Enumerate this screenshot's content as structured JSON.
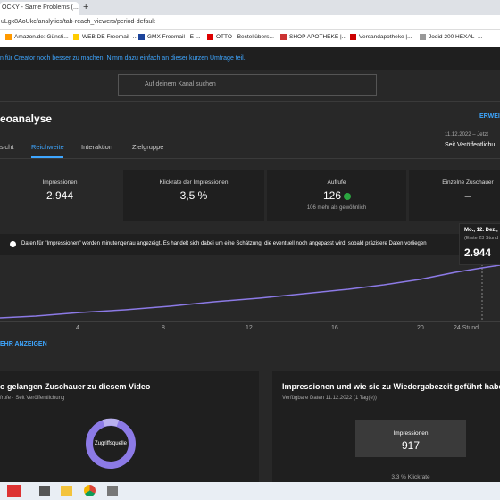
{
  "browser": {
    "tab_title": "OCKY - Same Problems (...",
    "new_tab": "+",
    "address": "uLgk8AoUkc/analytics/tab-reach_viewers/period-default",
    "bookmarks": [
      "Amazon.de: Günsti...",
      "WEB.DE Freemail -...",
      "GMX Freemail - E-...",
      "OTTO - Bestellübers...",
      "SHOP APOTHEKE |...",
      "Versandapotheke |...",
      "Jodid 200 HEXAL -..."
    ]
  },
  "banner": "n für Creator noch besser zu machen. Nimm dazu einfach an dieser kurzen Umfrage teil.",
  "search_placeholder": "Auf deinem Kanal suchen",
  "header": {
    "title": "eoanalyse",
    "action": "ERWEI",
    "period_range": "11.12.2022 – Jetzt",
    "period": "Seit Veröffentlichu"
  },
  "tabs": [
    "sicht",
    "Reichweite",
    "Interaktion",
    "Zielgruppe"
  ],
  "metrics": [
    {
      "label": "Impressionen",
      "value": "2.944"
    },
    {
      "label": "Klickrate der Impressionen",
      "value": "3,5 %"
    },
    {
      "label": "Aufrufe",
      "value": "126",
      "note": "106 mehr als gewöhnlich"
    },
    {
      "label": "Einzelne Zuschauer",
      "value": "–"
    }
  ],
  "info": "Daten für \"Impressionen\" werden minutengenau angezeigt. Es handelt sich dabei um eine Schätzung, die eventuell noch angepasst wird, sobald präzisere Daten vorliegen",
  "tooltip": {
    "date": "Mo., 12. Dez.,",
    "period": "(Erste 23 Stund",
    "value": "2.944"
  },
  "chart_x_labels": [
    "4",
    "8",
    "12",
    "16",
    "20",
    "24 Stund"
  ],
  "more": "EHR ANZEIGEN",
  "cards": [
    {
      "title": "o gelangen Zuschauer zu diesem Video",
      "subtitle": "frufe · Seit Veröffentlichung",
      "donut_label": "Zugriffsquelle"
    },
    {
      "title": "Impressionen und wie sie zu Wiedergabezeit geführt haben",
      "subtitle": "Verfügbare Daten 11.12.2022 (1 Tag(e))",
      "box_label": "Impressionen",
      "box_value": "917",
      "ctr": "3,3 % Klickrate"
    }
  ]
}
